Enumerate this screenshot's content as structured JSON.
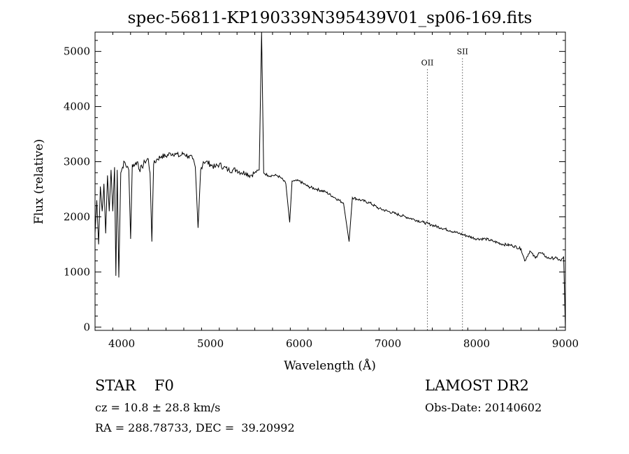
{
  "chart_data": {
    "type": "line",
    "title": "spec-56811-KP190339N395439V01_sp06-169.fits",
    "xlabel": "Wavelength (Å)",
    "ylabel": "Flux (relative)",
    "xlim": [
      3700,
      9000
    ],
    "ylim": [
      -60,
      5350
    ],
    "xticks": [
      4000,
      5000,
      6000,
      7000,
      8000,
      9000
    ],
    "yticks": [
      0,
      1000,
      2000,
      3000,
      4000,
      5000
    ],
    "grid": false,
    "series": [
      {
        "x": [
          3700,
          3720,
          3740,
          3760,
          3780,
          3800,
          3820,
          3840,
          3860,
          3880,
          3900,
          3920,
          3935,
          3950,
          3968,
          3990,
          4010,
          4030,
          4060,
          4080,
          4101,
          4120,
          4150,
          4180,
          4200,
          4230,
          4260,
          4300,
          4320,
          4340,
          4360,
          4400,
          4450,
          4500,
          4550,
          4600,
          4650,
          4700,
          4750,
          4800,
          4830,
          4861,
          4890,
          4920,
          4950,
          5000,
          5050,
          5100,
          5150,
          5200,
          5250,
          5300,
          5350,
          5400,
          5450,
          5500,
          5550,
          5577,
          5600,
          5650,
          5700,
          5750,
          5800,
          5850,
          5893,
          5920,
          5950,
          6000,
          6100,
          6200,
          6300,
          6400,
          6500,
          6563,
          6600,
          6700,
          6800,
          6900,
          7000,
          7100,
          7200,
          7300,
          7400,
          7500,
          7600,
          7700,
          7800,
          7900,
          8000,
          8100,
          8200,
          8300,
          8400,
          8500,
          8542,
          8600,
          8662,
          8700,
          8750,
          8800,
          8900,
          8950,
          8980,
          9000
        ],
        "y": [
          1700,
          2300,
          1500,
          2550,
          2100,
          2600,
          1700,
          2750,
          2100,
          2850,
          2100,
          2900,
          930,
          2850,
          900,
          2800,
          2900,
          3000,
          2900,
          2850,
          1600,
          2950,
          2950,
          3000,
          2850,
          2900,
          3000,
          3050,
          2800,
          1550,
          2950,
          3050,
          3100,
          3100,
          3150,
          3150,
          3100,
          3150,
          3100,
          3050,
          2900,
          1800,
          2850,
          3000,
          3000,
          2950,
          2900,
          2950,
          2900,
          2850,
          2850,
          2850,
          2800,
          2800,
          2750,
          2800,
          2850,
          5350,
          2800,
          2750,
          2750,
          2750,
          2700,
          2600,
          1900,
          2650,
          2650,
          2650,
          2550,
          2500,
          2450,
          2350,
          2250,
          1550,
          2350,
          2300,
          2250,
          2150,
          2100,
          2050,
          2000,
          1950,
          1900,
          1850,
          1800,
          1750,
          1700,
          1650,
          1600,
          1600,
          1550,
          1500,
          1480,
          1420,
          1200,
          1380,
          1250,
          1350,
          1320,
          1250,
          1250,
          1200,
          1280,
          -50
        ]
      }
    ],
    "annotations": [
      {
        "label": "OII",
        "x": 7445,
        "y": 4750
      },
      {
        "label": "SII",
        "x": 7840,
        "y": 4950
      }
    ]
  },
  "footer": {
    "object": "STAR    F0",
    "survey": "LAMOST DR2",
    "redshift": "cz = 10.8 ± 28.8 km/s",
    "obs_date": "Obs-Date: 20140602",
    "coords": "RA = 288.78733, DEC =  39.20992"
  }
}
